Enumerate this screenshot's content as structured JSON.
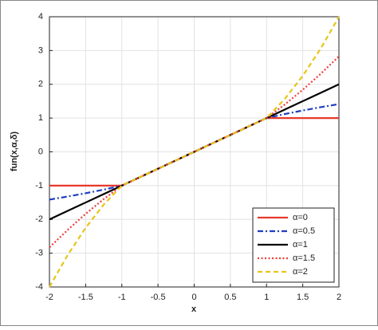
{
  "chart_data": {
    "type": "line",
    "xlabel": "x",
    "ylabel": "fun(x,α,δ)",
    "x": [
      -2,
      -1.75,
      -1.5,
      -1.25,
      -1,
      0,
      1,
      1.25,
      1.5,
      1.75,
      2
    ],
    "series": [
      {
        "name": "α=0",
        "color": "#e8392b",
        "dash": "solid",
        "values": [
          -1,
          -1,
          -1,
          -1,
          -1,
          0,
          1,
          1,
          1,
          1,
          1
        ]
      },
      {
        "name": "α=0.5",
        "color": "#1f3fbf",
        "dash": "dashdot",
        "values": [
          -1.414,
          -1.323,
          -1.225,
          -1.118,
          -1,
          0,
          1,
          1.118,
          1.225,
          1.323,
          1.414
        ]
      },
      {
        "name": "α=1",
        "color": "#000000",
        "dash": "solid",
        "values": [
          -2,
          -1.75,
          -1.5,
          -1.25,
          -1,
          0,
          1,
          1.25,
          1.5,
          1.75,
          2
        ]
      },
      {
        "name": "α=1.5",
        "color": "#f03c3c",
        "dash": "dotted",
        "values": [
          -2.828,
          -2.315,
          -1.837,
          -1.398,
          -1,
          0,
          1,
          1.398,
          1.837,
          2.315,
          2.828
        ]
      },
      {
        "name": "α=2",
        "color": "#e6c619",
        "dash": "dashed",
        "values": [
          -4,
          -3.0625,
          -2.25,
          -1.5625,
          -1,
          0,
          1,
          1.5625,
          2.25,
          3.0625,
          4
        ]
      }
    ],
    "xlim": [
      -2,
      2
    ],
    "xticks": [
      -2,
      -1.5,
      -1,
      -0.5,
      0,
      0.5,
      1,
      1.5,
      2
    ],
    "ylim": [
      -4,
      4
    ],
    "yticks": [
      -4,
      -3,
      -2,
      -1,
      0,
      1,
      2,
      3,
      4
    ],
    "grid": true,
    "legend": "lower right"
  }
}
